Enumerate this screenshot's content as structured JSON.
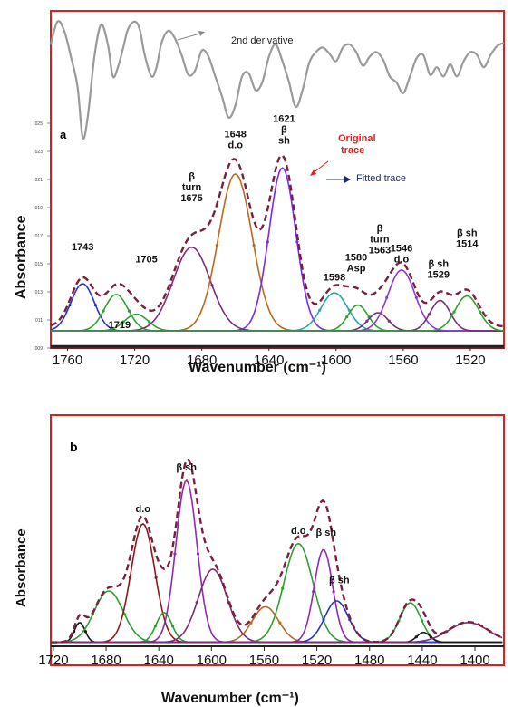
{
  "panels": [
    {
      "id": "a",
      "panel_label": "a",
      "xlabel": "Wavenumber (cm⁻¹)",
      "ylabel": "Absorbance",
      "xlim": [
        1770,
        1500
      ],
      "ylim": [
        0.0085,
        0.0305
      ],
      "xticks": [
        1760,
        1720,
        1680,
        1640,
        1600,
        1560,
        1520
      ],
      "yticks": [
        "025",
        "023",
        "021",
        "019",
        "017",
        "015",
        "013",
        "011",
        "009"
      ],
      "baseline": 0.0095,
      "derivative": {
        "label": "2nd derivative",
        "x": [
          1770,
          1766,
          1762,
          1758,
          1754,
          1751,
          1748,
          1744,
          1740,
          1736,
          1733,
          1730,
          1727,
          1724,
          1720,
          1717,
          1714,
          1710,
          1707,
          1704,
          1700,
          1696,
          1692,
          1688,
          1684,
          1680,
          1676,
          1672,
          1668,
          1664,
          1660,
          1656,
          1652,
          1648,
          1644,
          1640,
          1636,
          1632,
          1628,
          1624,
          1620,
          1616,
          1612,
          1608,
          1604,
          1600,
          1596,
          1592,
          1588,
          1584,
          1580,
          1576,
          1572,
          1568,
          1564,
          1560,
          1556,
          1552,
          1548,
          1544,
          1540,
          1536,
          1532,
          1528,
          1524,
          1520,
          1516,
          1512,
          1508,
          1504,
          1500
        ],
        "y": [
          0.0283,
          0.0298,
          0.0292,
          0.0275,
          0.0255,
          0.0222,
          0.0235,
          0.0275,
          0.0296,
          0.0283,
          0.0262,
          0.0268,
          0.028,
          0.0293,
          0.0298,
          0.0293,
          0.0276,
          0.0262,
          0.0268,
          0.0284,
          0.0292,
          0.0287,
          0.0276,
          0.0263,
          0.0266,
          0.0279,
          0.0275,
          0.0262,
          0.0249,
          0.0235,
          0.0243,
          0.0262,
          0.0264,
          0.0253,
          0.0258,
          0.0275,
          0.0283,
          0.0272,
          0.0258,
          0.0242,
          0.0253,
          0.0271,
          0.0278,
          0.0281,
          0.0277,
          0.0272,
          0.0281,
          0.0283,
          0.0278,
          0.0269,
          0.0275,
          0.0278,
          0.0273,
          0.0262,
          0.0258,
          0.0251,
          0.0262,
          0.0274,
          0.0276,
          0.0263,
          0.0268,
          0.0262,
          0.027,
          0.0262,
          0.0272,
          0.0278,
          0.0276,
          0.0268,
          0.0276,
          0.0282,
          0.0284
        ]
      },
      "legend": [
        {
          "label": "Original trace",
          "color": "#e0201a"
        },
        {
          "label": "Fitted trace",
          "color": "#1d2f6a"
        }
      ],
      "bands": [
        {
          "center": 1751,
          "height": 0.0031,
          "width": 7,
          "color": "#2b35c9"
        },
        {
          "center": 1731,
          "height": 0.0024,
          "width": 7,
          "color": "#2fa032"
        },
        {
          "center": 1719,
          "height": 0.0011,
          "width": 7,
          "color": "#2fa032"
        },
        {
          "center": 1686,
          "height": 0.0055,
          "width": 11,
          "color": "#7b2e7b"
        },
        {
          "center": 1660,
          "height": 0.0103,
          "width": 10,
          "color": "#b96a1f"
        },
        {
          "center": 1632,
          "height": 0.0107,
          "width": 8,
          "color": "#7b2be2"
        },
        {
          "center": 1601,
          "height": 0.0025,
          "width": 8,
          "color": "#28a4b0"
        },
        {
          "center": 1587,
          "height": 0.0017,
          "width": 6,
          "color": "#2fa032"
        },
        {
          "center": 1575,
          "height": 0.0012,
          "width": 6,
          "color": "#7b2e7b"
        },
        {
          "center": 1561,
          "height": 0.004,
          "width": 8,
          "color": "#8e3acc"
        },
        {
          "center": 1538,
          "height": 0.002,
          "width": 6,
          "color": "#7b2e7b"
        },
        {
          "center": 1522,
          "height": 0.0023,
          "width": 7,
          "color": "#2fa032"
        }
      ],
      "annotations": [
        {
          "lines": [
            "1743"
          ],
          "x": 1751,
          "y": 0.0148
        },
        {
          "lines": [
            "1719"
          ],
          "x": 1729,
          "y": 0.0097
        },
        {
          "lines": [
            "1705"
          ],
          "x": 1713,
          "y": 0.014
        },
        {
          "lines": [
            "β",
            "turn",
            "1675"
          ],
          "x": 1686,
          "y": 0.018
        },
        {
          "lines": [
            "1648",
            "d.o"
          ],
          "x": 1660,
          "y": 0.0215
        },
        {
          "lines": [
            "1621",
            "β",
            "sh"
          ],
          "x": 1631,
          "y": 0.0218
        },
        {
          "lines": [
            "1598"
          ],
          "x": 1601,
          "y": 0.0128
        },
        {
          "lines": [
            "1580",
            "Asp"
          ],
          "x": 1588,
          "y": 0.0134
        },
        {
          "lines": [
            "β",
            "turn",
            "1563"
          ],
          "x": 1574,
          "y": 0.0146
        },
        {
          "lines": [
            "1546",
            "d.o"
          ],
          "x": 1561,
          "y": 0.014
        },
        {
          "lines": [
            "β sh",
            "1529"
          ],
          "x": 1539,
          "y": 0.013
        },
        {
          "lines": [
            "β sh",
            "1514"
          ],
          "x": 1522,
          "y": 0.015
        }
      ]
    },
    {
      "id": "b",
      "panel_label": "b",
      "xlabel": "Wavenumber (cm⁻¹)",
      "ylabel": "Absorbance",
      "xlim": [
        1722,
        1378
      ],
      "ylim": [
        -0.02,
        1.15
      ],
      "xticks": [
        1720,
        1680,
        1640,
        1600,
        1560,
        1520,
        1480,
        1440,
        1400
      ],
      "baseline": 0.0,
      "bands": [
        {
          "center": 1700,
          "height": 0.1,
          "width": 4,
          "color": "#1a1a1a"
        },
        {
          "center": 1678,
          "height": 0.26,
          "width": 11,
          "color": "#2fa032"
        },
        {
          "center": 1652,
          "height": 0.6,
          "width": 9,
          "color": "#8b1a1a"
        },
        {
          "center": 1636,
          "height": 0.15,
          "width": 6,
          "color": "#2fa032"
        },
        {
          "center": 1619,
          "height": 0.82,
          "width": 8,
          "color": "#8e2bb0"
        },
        {
          "center": 1599,
          "height": 0.37,
          "width": 11,
          "color": "#7b2e7b"
        },
        {
          "center": 1559,
          "height": 0.18,
          "width": 10,
          "color": "#b96a1f"
        },
        {
          "center": 1534,
          "height": 0.5,
          "width": 11,
          "color": "#2fa032"
        },
        {
          "center": 1515,
          "height": 0.47,
          "width": 7,
          "color": "#8e2bb0"
        },
        {
          "center": 1505,
          "height": 0.21,
          "width": 9,
          "color": "#2b35c9"
        },
        {
          "center": 1449,
          "height": 0.2,
          "width": 8,
          "color": "#2fa032"
        },
        {
          "center": 1439,
          "height": 0.05,
          "width": 5,
          "color": "#1a1a1a"
        },
        {
          "center": 1405,
          "height": 0.1,
          "width": 15,
          "color": "#7b2e7b"
        }
      ],
      "annotations": [
        {
          "lines": [
            "d.o"
          ],
          "x": 1652,
          "y": 0.66
        },
        {
          "lines": [
            "β sh"
          ],
          "x": 1619,
          "y": 0.87
        },
        {
          "lines": [
            "d.o"
          ],
          "x": 1534,
          "y": 0.55
        },
        {
          "lines": [
            "β sh"
          ],
          "x": 1513,
          "y": 0.54
        },
        {
          "lines": [
            "β sh"
          ],
          "x": 1503,
          "y": 0.3
        }
      ]
    }
  ],
  "chart_data": [
    {
      "type": "line",
      "panel": "a",
      "title": "",
      "xlabel": "Wavenumber (cm⁻¹)",
      "ylabel": "Absorbance",
      "xlim": [
        1770,
        1500
      ],
      "ylim": [
        0.0085,
        0.0305
      ],
      "x_reversed": true,
      "series": [
        {
          "name": "2nd derivative"
        },
        {
          "name": "Original trace"
        },
        {
          "name": "Fitted trace"
        }
      ],
      "band_labels": [
        "1743",
        "1719",
        "1705",
        "1675",
        "1648",
        "1621",
        "1598",
        "1580",
        "1563",
        "1546",
        "1529",
        "1514"
      ]
    },
    {
      "type": "line",
      "panel": "b",
      "title": "",
      "xlabel": "Wavenumber (cm⁻¹)",
      "ylabel": "Absorbance",
      "xlim": [
        1722,
        1378
      ],
      "x_reversed": true,
      "band_labels": [
        "d.o",
        "β sh",
        "d.o",
        "β sh",
        "β sh"
      ]
    }
  ]
}
